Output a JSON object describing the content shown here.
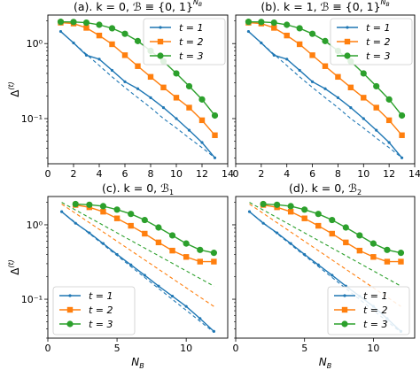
{
  "figure": {
    "colors": {
      "t1": "#1f77b4",
      "t2": "#ff7f0e",
      "t3": "#2ca02c"
    }
  },
  "chart_data": [
    {
      "type": "line",
      "title": "(a). k = 0, ℬ ≡ {0, 1}",
      "title_sup": "N",
      "title_sub": "B",
      "xlabel": "",
      "ylabel": "Δ",
      "ylabel_sup": "(t)",
      "yscale": "log",
      "xlim": [
        0,
        14
      ],
      "ylim": [
        0.025,
        2.4
      ],
      "xticks": [
        0,
        2,
        4,
        6,
        8,
        10,
        12,
        14
      ],
      "xtick_labels": [
        "0",
        "2",
        "4",
        "6",
        "8",
        "10",
        "12",
        "14"
      ],
      "ytick_labels": [
        "10⁰",
        "10⁻¹"
      ],
      "legend": {
        "position": "top-right",
        "entries": [
          "t = 1",
          "t = 2",
          "t = 3"
        ]
      },
      "series": [
        {
          "name": "t = 1",
          "marker": "dot",
          "color": "#1f77b4",
          "x": [
            1,
            2,
            3,
            4,
            5,
            6,
            7,
            8,
            9,
            10,
            11,
            12,
            13
          ],
          "values": [
            1.45,
            1.02,
            0.7,
            0.62,
            0.44,
            0.31,
            0.25,
            0.19,
            0.14,
            0.1,
            0.07,
            0.048,
            0.03
          ],
          "fit": [
            1.45,
            1.02,
            0.72,
            0.51,
            0.36,
            0.26,
            0.19,
            0.14,
            0.1,
            0.075,
            0.055,
            0.041,
            0.03
          ]
        },
        {
          "name": "t = 2",
          "marker": "square",
          "color": "#ff7f0e",
          "x": [
            1,
            2,
            3,
            4,
            5,
            6,
            7,
            8,
            9,
            10,
            11,
            12,
            13
          ],
          "values": [
            1.9,
            1.85,
            1.62,
            1.28,
            0.98,
            0.7,
            0.5,
            0.36,
            0.26,
            0.19,
            0.14,
            0.095,
            0.06
          ]
        },
        {
          "name": "t = 3",
          "marker": "circle",
          "color": "#2ca02c",
          "x": [
            1,
            2,
            3,
            4,
            5,
            6,
            7,
            8,
            9,
            10,
            11,
            12,
            13
          ],
          "values": [
            1.95,
            1.94,
            1.9,
            1.78,
            1.6,
            1.35,
            1.08,
            0.8,
            0.58,
            0.4,
            0.27,
            0.18,
            0.11
          ]
        }
      ]
    },
    {
      "type": "line",
      "title": "(b). k = 1, ℬ ≡ {0, 1}",
      "title_sup": "N",
      "title_sub": "B",
      "xlabel": "",
      "ylabel": "",
      "yscale": "log",
      "xlim": [
        0,
        14
      ],
      "ylim": [
        0.025,
        2.4
      ],
      "xticks": [
        0,
        2,
        4,
        6,
        8,
        10,
        12,
        14
      ],
      "xtick_labels": [
        "0",
        "2",
        "4",
        "6",
        "8",
        "10",
        "12",
        "14"
      ],
      "ytick_labels": [],
      "legend": {
        "position": "top-right",
        "entries": [
          "t = 1",
          "t = 2",
          "t = 3"
        ]
      },
      "series": [
        {
          "name": "t = 1",
          "marker": "dot",
          "color": "#1f77b4",
          "x": [
            1,
            2,
            3,
            4,
            5,
            6,
            7,
            8,
            9,
            10,
            11,
            12,
            13
          ],
          "values": [
            1.45,
            1.02,
            0.7,
            0.62,
            0.44,
            0.31,
            0.25,
            0.19,
            0.14,
            0.1,
            0.07,
            0.048,
            0.03
          ],
          "fit": [
            1.45,
            1.02,
            0.72,
            0.51,
            0.36,
            0.26,
            0.19,
            0.14,
            0.1,
            0.075,
            0.055,
            0.041,
            0.03
          ]
        },
        {
          "name": "t = 2",
          "marker": "square",
          "color": "#ff7f0e",
          "x": [
            1,
            2,
            3,
            4,
            5,
            6,
            7,
            8,
            9,
            10,
            11,
            12,
            13
          ],
          "values": [
            1.9,
            1.85,
            1.62,
            1.28,
            0.98,
            0.7,
            0.5,
            0.36,
            0.26,
            0.19,
            0.14,
            0.095,
            0.06
          ]
        },
        {
          "name": "t = 3",
          "marker": "circle",
          "color": "#2ca02c",
          "x": [
            1,
            2,
            3,
            4,
            5,
            6,
            7,
            8,
            9,
            10,
            11,
            12,
            13
          ],
          "values": [
            1.95,
            1.94,
            1.9,
            1.78,
            1.6,
            1.35,
            1.08,
            0.8,
            0.58,
            0.4,
            0.27,
            0.18,
            0.11
          ]
        }
      ]
    },
    {
      "type": "line",
      "title": "(c). k = 0, ℬ",
      "title_sub": "1",
      "xlabel": "N",
      "xlabel_sub": "B",
      "ylabel": "Δ",
      "ylabel_sup": "(t)",
      "yscale": "log",
      "xlim": [
        0,
        13
      ],
      "ylim": [
        0.03,
        2.4
      ],
      "xticks": [
        0,
        5,
        10
      ],
      "xtick_labels": [
        "0",
        "5",
        "10"
      ],
      "ytick_labels": [
        "10⁰",
        "10⁻¹"
      ],
      "legend": {
        "position": "bottom-left",
        "entries": [
          "t = 1",
          "t = 2",
          "t = 3"
        ]
      },
      "series": [
        {
          "name": "t = 1",
          "marker": "dot",
          "color": "#1f77b4",
          "x": [
            1,
            2,
            3,
            4,
            5,
            6,
            7,
            8,
            9,
            10,
            11,
            12
          ],
          "values": [
            1.5,
            1.05,
            0.78,
            0.56,
            0.4,
            0.29,
            0.21,
            0.15,
            0.11,
            0.08,
            0.055,
            0.037
          ],
          "fit_x": [
            1,
            12
          ],
          "fit": [
            1.5,
            0.036
          ]
        },
        {
          "name": "t = 2",
          "marker": "square",
          "color": "#ff7f0e",
          "x": [
            2,
            3,
            4,
            5,
            6,
            7,
            8,
            9,
            10,
            11,
            12
          ],
          "values": [
            1.85,
            1.72,
            1.5,
            1.22,
            0.97,
            0.76,
            0.58,
            0.45,
            0.37,
            0.32,
            0.32
          ],
          "fit_x": [
            1,
            12
          ],
          "fit": [
            1.9,
            0.08
          ]
        },
        {
          "name": "t = 3",
          "marker": "circle",
          "color": "#2ca02c",
          "x": [
            2,
            3,
            4,
            5,
            6,
            7,
            8,
            9,
            10,
            11,
            12
          ],
          "values": [
            1.9,
            1.86,
            1.78,
            1.6,
            1.4,
            1.16,
            0.92,
            0.72,
            0.56,
            0.46,
            0.42
          ],
          "fit_x": [
            1,
            12
          ],
          "fit": [
            2.0,
            0.15
          ]
        }
      ]
    },
    {
      "type": "line",
      "title": "(d). k = 0, ℬ",
      "title_sub": "2",
      "xlabel": "N",
      "xlabel_sub": "B",
      "ylabel": "",
      "yscale": "log",
      "xlim": [
        0,
        13
      ],
      "ylim": [
        0.03,
        2.4
      ],
      "xticks": [
        0,
        5,
        10
      ],
      "xtick_labels": [
        "0",
        "5",
        "10"
      ],
      "ytick_labels": [],
      "legend": {
        "position": "bottom-right",
        "entries": [
          "t = 1",
          "t = 2",
          "t = 3"
        ]
      },
      "series": [
        {
          "name": "t = 1",
          "marker": "dot",
          "color": "#1f77b4",
          "x": [
            1,
            2,
            3,
            4,
            5,
            6,
            7,
            8,
            9,
            10,
            11,
            12
          ],
          "values": [
            1.5,
            1.05,
            0.78,
            0.56,
            0.4,
            0.29,
            0.21,
            0.15,
            0.11,
            0.08,
            0.055,
            0.037
          ],
          "fit_x": [
            1,
            12
          ],
          "fit": [
            1.5,
            0.036
          ]
        },
        {
          "name": "t = 2",
          "marker": "square",
          "color": "#ff7f0e",
          "x": [
            2,
            3,
            4,
            5,
            6,
            7,
            8,
            9,
            10,
            11,
            12
          ],
          "values": [
            1.85,
            1.72,
            1.5,
            1.22,
            0.97,
            0.76,
            0.58,
            0.45,
            0.37,
            0.32,
            0.32
          ],
          "fit_x": [
            1,
            12
          ],
          "fit": [
            1.9,
            0.08
          ]
        },
        {
          "name": "t = 3",
          "marker": "circle",
          "color": "#2ca02c",
          "x": [
            2,
            3,
            4,
            5,
            6,
            7,
            8,
            9,
            10,
            11,
            12
          ],
          "values": [
            1.9,
            1.86,
            1.78,
            1.6,
            1.4,
            1.16,
            0.92,
            0.72,
            0.56,
            0.46,
            0.42
          ],
          "fit_x": [
            1,
            12
          ],
          "fit": [
            2.0,
            0.15
          ]
        }
      ]
    }
  ]
}
